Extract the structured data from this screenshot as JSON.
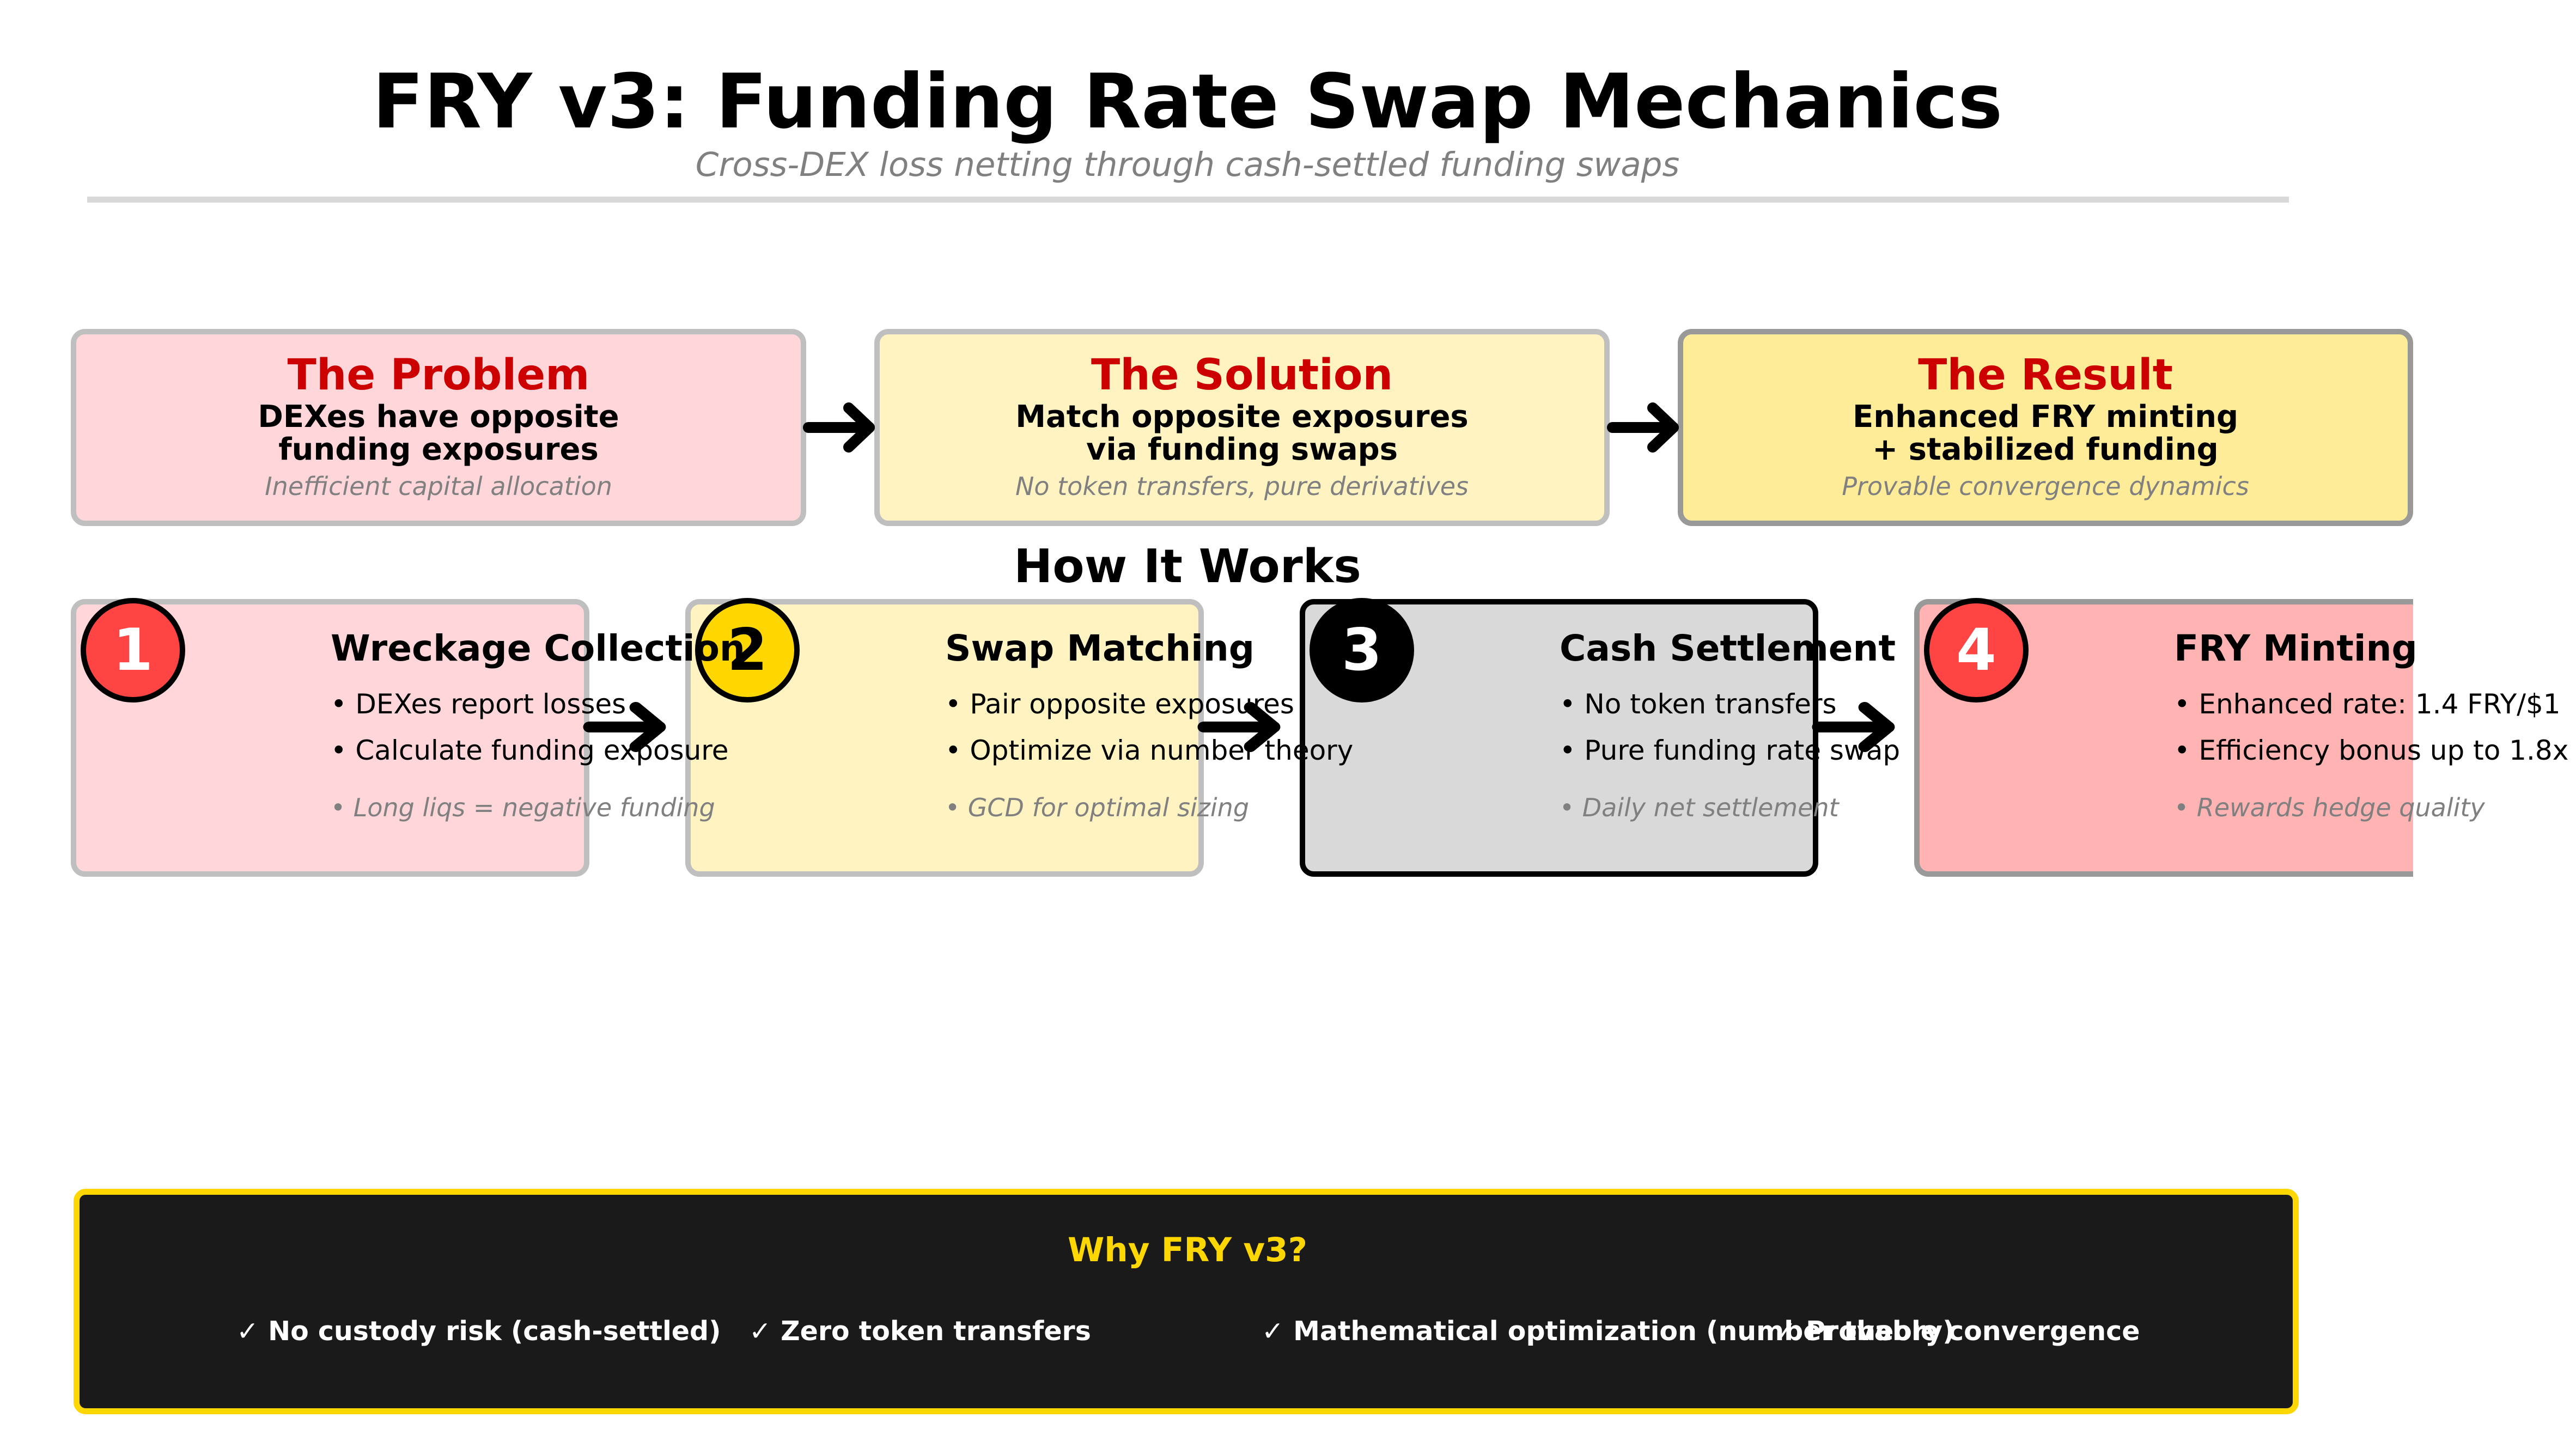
{
  "header": {
    "title": "FRY v3: Funding Rate Swap Mechanics",
    "subtitle": "Cross-DEX loss netting through cash-settled funding swaps"
  },
  "summary": [
    {
      "heading": "The Problem",
      "line1": "DEXes have opposite",
      "line2": "funding exposures",
      "note": "Inefficient capital allocation",
      "fill": "#ffd6d9",
      "border": "#bfbfbf"
    },
    {
      "heading": "The Solution",
      "line1": "Match opposite exposures",
      "line2": "via funding swaps",
      "note": "No token transfers, pure derivatives",
      "fill": "#fff3c2",
      "border": "#bfbfbf"
    },
    {
      "heading": "The Result",
      "line1": "Enhanced FRY minting",
      "line2": "+ stabilized funding",
      "note": "Provable convergence dynamics",
      "fill": "#ffec99",
      "border": "#999999"
    }
  ],
  "section_title": "How It Works",
  "steps": [
    {
      "number": "1",
      "title": "Wreckage Collection",
      "bullet1": "• DEXes report losses",
      "bullet2": "• Calculate funding exposure",
      "note": "• Long liqs = negative funding",
      "fill": "#ffd6d9",
      "border": "#bfbfbf",
      "circle_fill": "#ff4444",
      "circle_text": "#ffffff"
    },
    {
      "number": "2",
      "title": "Swap Matching",
      "bullet1": "• Pair opposite exposures",
      "bullet2": "• Optimize via number theory",
      "note": "• GCD for optimal sizing",
      "fill": "#fff3c2",
      "border": "#bfbfbf",
      "circle_fill": "#ffd700",
      "circle_text": "#000000"
    },
    {
      "number": "3",
      "title": "Cash Settlement",
      "bullet1": "• No token transfers",
      "bullet2": "• Pure funding rate swap",
      "note": "• Daily net settlement",
      "fill": "#d9d9d9",
      "border": "#000000",
      "circle_fill": "#000000",
      "circle_text": "#ffffff"
    },
    {
      "number": "4",
      "title": "FRY Minting",
      "bullet1": "• Enhanced rate: 1.4 FRY/$1",
      "bullet2": "• Efficiency bonus up to 1.8x",
      "note": "• Rewards hedge quality",
      "fill": "#ffb3b3",
      "border": "#999999",
      "circle_fill": "#ff4444",
      "circle_text": "#ffffff"
    }
  ],
  "why": {
    "title": "Why FRY v3?",
    "items": [
      "✓ No custody risk (cash-settled)",
      "✓ Zero token transfers",
      "✓ Mathematical optimization (number theory)",
      "✓ Provable convergence"
    ],
    "panel_fill": "#1a1a1a",
    "panel_border": "#ffd700"
  },
  "icons": {
    "flow_arrow": "right-arrow-icon"
  }
}
